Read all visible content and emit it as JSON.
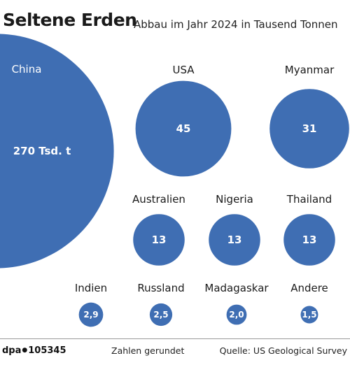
{
  "title": "Seltene Erden",
  "subtitle": "Abbau im Jahr 2024 in Tausend Tonnen",
  "footer": {
    "agency": "dpa",
    "graphic_id": "105345",
    "note": "Zahlen gerundet",
    "source": "Quelle: US Geological Survey"
  },
  "colors": {
    "bubble": "#3f6eb3",
    "text_on_bubble": "#ffffff"
  },
  "chart_data": {
    "type": "bubble",
    "unit": "Tausend Tonnen",
    "categories": [
      "China",
      "USA",
      "Myanmar",
      "Australien",
      "Nigeria",
      "Thailand",
      "Indien",
      "Russland",
      "Madagaskar",
      "Andere"
    ],
    "values": [
      270,
      45,
      31,
      13,
      13,
      13,
      2.9,
      2.5,
      2.0,
      1.5
    ],
    "value_labels": [
      "270 Tsd. t",
      "45",
      "31",
      "13",
      "13",
      "13",
      "2,9",
      "2,5",
      "2,0",
      "1,5"
    ]
  }
}
